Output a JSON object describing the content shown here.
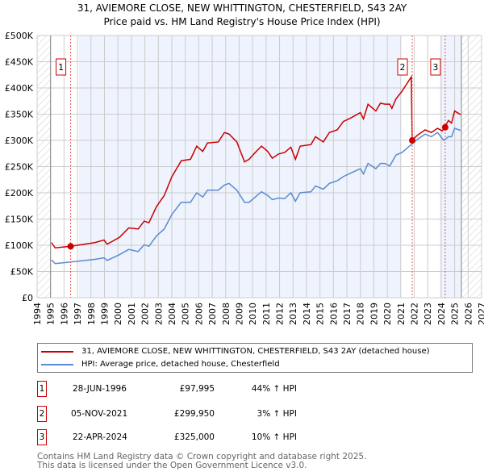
{
  "chart_data": {
    "type": "line",
    "title": "31, AVIEMORE CLOSE, NEW WHITTINGTON, CHESTERFIELD, S43 2AY",
    "subtitle": "Price paid vs. HM Land Registry's House Price Index (HPI)",
    "xlim": [
      1994,
      2027
    ],
    "ylim": [
      0,
      500000
    ],
    "x_ticks": [
      "1994",
      "1995",
      "1996",
      "1997",
      "1998",
      "1999",
      "2000",
      "2001",
      "2002",
      "2003",
      "2004",
      "2005",
      "2006",
      "2007",
      "2008",
      "2009",
      "2010",
      "2011",
      "2012",
      "2013",
      "2014",
      "2015",
      "2016",
      "2017",
      "2018",
      "2019",
      "2020",
      "2021",
      "2022",
      "2023",
      "2024",
      "2025",
      "2026",
      "2027"
    ],
    "y_ticks": [
      {
        "v": 0,
        "label": "£0"
      },
      {
        "v": 50000,
        "label": "£50K"
      },
      {
        "v": 100000,
        "label": "£100K"
      },
      {
        "v": 150000,
        "label": "£150K"
      },
      {
        "v": 200000,
        "label": "£200K"
      },
      {
        "v": 250000,
        "label": "£250K"
      },
      {
        "v": 300000,
        "label": "£300K"
      },
      {
        "v": 350000,
        "label": "£350K"
      },
      {
        "v": 400000,
        "label": "£400K"
      },
      {
        "v": 450000,
        "label": "£450K"
      },
      {
        "v": 500000,
        "label": "£500K"
      }
    ],
    "grid": true,
    "series": [
      {
        "name": "31, AVIEMORE CLOSE, NEW WHITTINGTON, CHESTERFIELD, S43 2AY (detached house)",
        "color": "#cc0000",
        "points": [
          [
            1995.07,
            105
          ],
          [
            1995.34,
            95
          ],
          [
            1996.49,
            98
          ],
          [
            1998.28,
            105
          ],
          [
            1998.97,
            110
          ],
          [
            1999.2,
            102
          ],
          [
            2000.11,
            115
          ],
          [
            2000.8,
            133
          ],
          [
            2001.5,
            131
          ],
          [
            2001.95,
            146
          ],
          [
            2002.3,
            143
          ],
          [
            2002.87,
            174
          ],
          [
            2003.44,
            195
          ],
          [
            2004.01,
            231
          ],
          [
            2004.7,
            261
          ],
          [
            2005.39,
            264
          ],
          [
            2005.85,
            289
          ],
          [
            2006.3,
            279
          ],
          [
            2006.65,
            295
          ],
          [
            2007.45,
            297
          ],
          [
            2007.91,
            315
          ],
          [
            2008.25,
            312
          ],
          [
            2008.83,
            297
          ],
          [
            2009.4,
            259
          ],
          [
            2009.74,
            264
          ],
          [
            2010.2,
            277
          ],
          [
            2010.66,
            289
          ],
          [
            2011.12,
            279
          ],
          [
            2011.46,
            266
          ],
          [
            2011.92,
            274
          ],
          [
            2012.38,
            277
          ],
          [
            2012.84,
            287
          ],
          [
            2013.18,
            264
          ],
          [
            2013.53,
            289
          ],
          [
            2014.33,
            292
          ],
          [
            2014.67,
            307
          ],
          [
            2015.25,
            297
          ],
          [
            2015.7,
            315
          ],
          [
            2016.28,
            320
          ],
          [
            2016.74,
            336
          ],
          [
            2017.31,
            343
          ],
          [
            2018.0,
            353
          ],
          [
            2018.23,
            341
          ],
          [
            2018.57,
            369
          ],
          [
            2019.15,
            356
          ],
          [
            2019.49,
            371
          ],
          [
            2019.83,
            369
          ],
          [
            2020.18,
            369
          ],
          [
            2020.34,
            361
          ],
          [
            2020.64,
            379
          ],
          [
            2021.1,
            394
          ],
          [
            2021.78,
            421
          ],
          [
            2021.85,
            300
          ],
          [
            2022.24,
            310
          ],
          [
            2022.81,
            320
          ],
          [
            2023.27,
            315
          ],
          [
            2023.73,
            323
          ],
          [
            2024.08,
            318
          ],
          [
            2024.26,
            325
          ],
          [
            2024.54,
            338
          ],
          [
            2024.77,
            333
          ],
          [
            2025.0,
            356
          ],
          [
            2025.45,
            349
          ]
        ]
      },
      {
        "name": "HPI: Average price, detached house, Chesterfield",
        "color": "#5b8bd0",
        "points": [
          [
            1995.07,
            72
          ],
          [
            1995.34,
            65
          ],
          [
            1996.49,
            68
          ],
          [
            1998.28,
            73
          ],
          [
            1998.97,
            76
          ],
          [
            1999.2,
            71
          ],
          [
            2000.11,
            82
          ],
          [
            2000.8,
            92
          ],
          [
            2001.5,
            88
          ],
          [
            2001.95,
            101
          ],
          [
            2002.3,
            98
          ],
          [
            2002.87,
            118
          ],
          [
            2003.44,
            131
          ],
          [
            2004.01,
            159
          ],
          [
            2004.7,
            182
          ],
          [
            2005.39,
            182
          ],
          [
            2005.85,
            200
          ],
          [
            2006.3,
            192
          ],
          [
            2006.65,
            205
          ],
          [
            2007.45,
            205
          ],
          [
            2007.91,
            215
          ],
          [
            2008.25,
            218
          ],
          [
            2008.83,
            205
          ],
          [
            2009.4,
            182
          ],
          [
            2009.74,
            182
          ],
          [
            2010.2,
            192
          ],
          [
            2010.66,
            202
          ],
          [
            2011.12,
            195
          ],
          [
            2011.46,
            187
          ],
          [
            2011.92,
            190
          ],
          [
            2012.38,
            189
          ],
          [
            2012.84,
            200
          ],
          [
            2013.18,
            184
          ],
          [
            2013.53,
            200
          ],
          [
            2014.33,
            202
          ],
          [
            2014.67,
            213
          ],
          [
            2015.25,
            207
          ],
          [
            2015.7,
            218
          ],
          [
            2016.28,
            223
          ],
          [
            2016.74,
            231
          ],
          [
            2017.31,
            238
          ],
          [
            2018.0,
            246
          ],
          [
            2018.23,
            236
          ],
          [
            2018.57,
            256
          ],
          [
            2019.15,
            246
          ],
          [
            2019.49,
            256
          ],
          [
            2019.83,
            256
          ],
          [
            2020.18,
            251
          ],
          [
            2020.64,
            272
          ],
          [
            2021.1,
            277
          ],
          [
            2021.78,
            292
          ],
          [
            2022.24,
            302
          ],
          [
            2022.81,
            312
          ],
          [
            2023.27,
            307
          ],
          [
            2023.73,
            315
          ],
          [
            2024.19,
            300
          ],
          [
            2024.54,
            307
          ],
          [
            2024.77,
            307
          ],
          [
            2025.0,
            323
          ],
          [
            2025.45,
            319
          ]
        ]
      }
    ],
    "sales": [
      {
        "id": "1",
        "x": 1996.49,
        "value": 97995
      },
      {
        "id": "2",
        "x": 2021.85,
        "value": 299950
      },
      {
        "id": "3",
        "x": 2024.3,
        "value": 325000
      }
    ]
  },
  "table": [
    {
      "id": "1",
      "date": "28-JUN-1996",
      "price": "£97,995",
      "hpi": "44% ↑ HPI"
    },
    {
      "id": "2",
      "date": "05-NOV-2021",
      "price": "£299,950",
      "hpi": "3% ↑ HPI"
    },
    {
      "id": "3",
      "date": "22-APR-2024",
      "price": "£325,000",
      "hpi": "10% ↑ HPI"
    }
  ],
  "footer": {
    "line1": "Contains HM Land Registry data © Crown copyright and database right 2025.",
    "line2": "This data is licensed under the Open Government Licence v3.0."
  }
}
